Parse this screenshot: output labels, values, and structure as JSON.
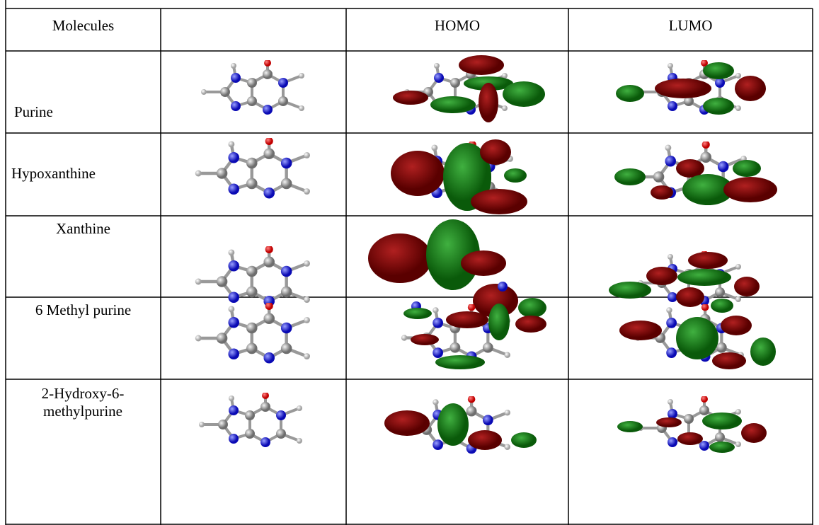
{
  "table": {
    "header": [
      "Molecules",
      "HOMO",
      "LUMO"
    ],
    "rows": [
      "Purine",
      "Hypoxanthine",
      "Xanthine",
      "6 Methyl purine",
      "2-Hydroxy-6-methylpurine"
    ]
  }
}
